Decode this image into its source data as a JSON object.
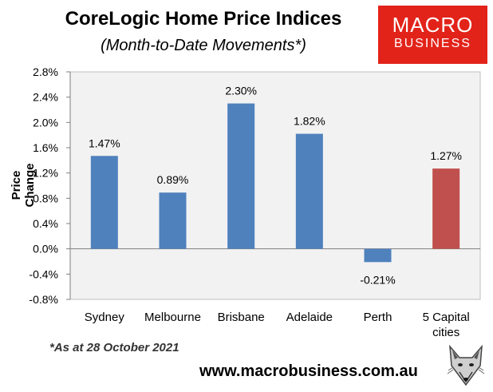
{
  "header": {
    "title": "CoreLogic Home Price Indices",
    "subtitle": "(Month-to-Date Movements*)"
  },
  "logo": {
    "line1": "MACRO",
    "line2": "BUSINESS"
  },
  "footer": {
    "note": "*As at 28 October 2021",
    "url": "www.macrobusiness.com.au"
  },
  "chart_data": {
    "type": "bar",
    "title": "CoreLogic Home Price Indices",
    "subtitle": "(Month-to-Date Movements*)",
    "ylabel": "Price Change",
    "xlabel": "",
    "categories": [
      "Sydney",
      "Melbourne",
      "Brisbane",
      "Adelaide",
      "Perth",
      "5 Capital cities"
    ],
    "values": [
      1.47,
      0.89,
      2.3,
      1.82,
      -0.21,
      1.27
    ],
    "value_labels": [
      "1.47%",
      "0.89%",
      "2.30%",
      "1.82%",
      "-0.21%",
      "1.27%"
    ],
    "ylim": [
      -0.8,
      2.8
    ],
    "yticks": [
      "2.8%",
      "2.4%",
      "2.0%",
      "1.6%",
      "1.2%",
      "0.8%",
      "0.4%",
      "0.0%",
      "-0.4%",
      "-0.8%"
    ],
    "ytick_values": [
      2.8,
      2.4,
      2.0,
      1.6,
      1.2,
      0.8,
      0.4,
      0.0,
      -0.4,
      -0.8
    ],
    "colors": [
      "#4f81bd",
      "#4f81bd",
      "#4f81bd",
      "#4f81bd",
      "#4f81bd",
      "#c0504d"
    ],
    "plot_background": "#f2f2f2",
    "grid": false,
    "legend": "none"
  }
}
